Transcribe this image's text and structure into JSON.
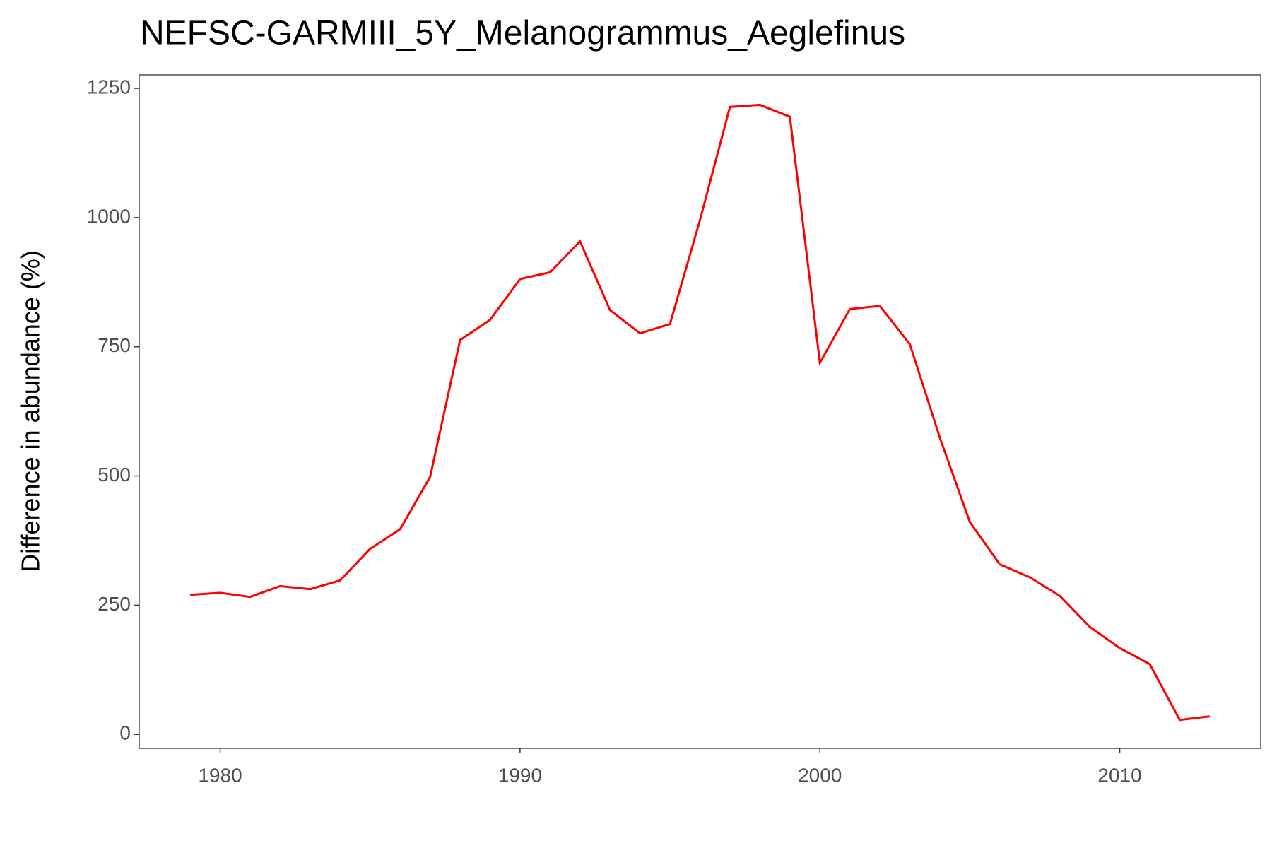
{
  "chart_data": {
    "type": "line",
    "title": "NEFSC-GARMIII_5Y_Melanogrammus_Aeglefinus",
    "y_label": "Difference in abundance (%)",
    "x": [
      1979,
      1980,
      1981,
      1982,
      1983,
      1984,
      1985,
      1986,
      1987,
      1988,
      1989,
      1990,
      1991,
      1992,
      1993,
      1994,
      1995,
      1996,
      1997,
      1998,
      1999,
      2000,
      2001,
      2002,
      2003,
      2004,
      2005,
      2006,
      2007,
      2008,
      2009,
      2010,
      2011,
      2012,
      2013
    ],
    "series": [
      {
        "name": "Melanogrammus aeglefinus",
        "color": "#ff0000",
        "values": [
          270,
          274,
          266,
          287,
          281,
          298,
          359,
          397,
          498,
          763,
          802,
          881,
          894,
          954,
          821,
          776,
          794,
          995,
          1214,
          1218,
          1195,
          719,
          823,
          829,
          755,
          574,
          411,
          329,
          304,
          268,
          208,
          167,
          136,
          28,
          35
        ]
      }
    ],
    "xlim": [
      1977.3,
      2014.7
    ],
    "xticks": [
      1980,
      1990,
      2000,
      2010
    ],
    "ylim": [
      -27,
      1276
    ],
    "yticks": [
      0,
      250,
      500,
      750,
      1000,
      1250
    ],
    "grid": false,
    "legend": false
  }
}
